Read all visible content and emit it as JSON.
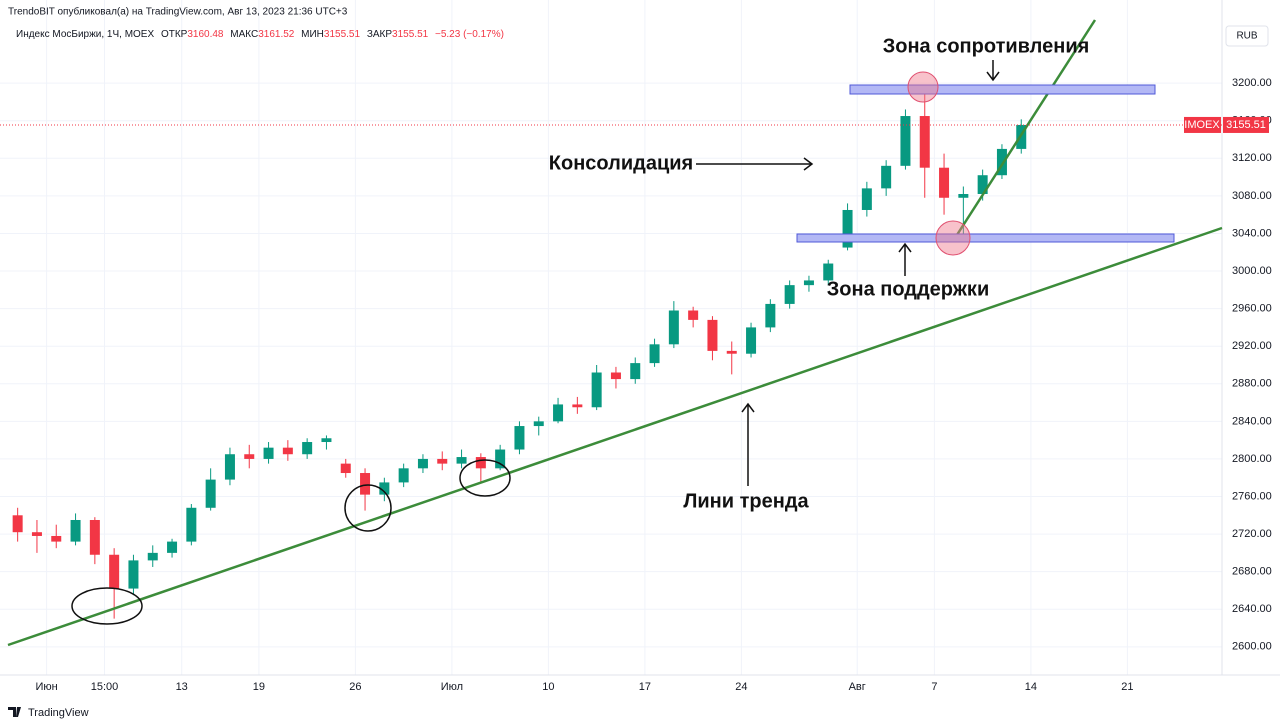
{
  "header": {
    "author_line": "TrendoBIT опубликовал(а) на TradingView.com, Авг 13, 2023 21:36 UTC+3",
    "symbol_line": "Индекс МосБиржи, 1Ч, MOEX",
    "open_label": "ОТКР",
    "open": 3160.48,
    "high_label": "МАКС",
    "high": 3161.52,
    "low_label": "МИН",
    "low": 3155.51,
    "close_label": "ЗАКР",
    "close": 3155.51,
    "change": "−5.23 (−0.17%)",
    "currency": "RUB",
    "footer": "TradingView"
  },
  "annotations": {
    "resistance": "Зона сопротивления",
    "consolidation": "Консолидация",
    "support": "Зона поддержки",
    "trend": "Лини тренда"
  },
  "chart_data": {
    "type": "candlestick",
    "up_color": "#089981",
    "down_color": "#f23645",
    "symbol": "IMOEX",
    "last_price": 3155.51,
    "categories": [
      null,
      null,
      "Июн",
      null,
      null,
      "15:00",
      null,
      null,
      null,
      "13",
      null,
      null,
      null,
      "19",
      null,
      null,
      null,
      null,
      "26",
      null,
      null,
      null,
      null,
      "Июл",
      null,
      null,
      null,
      null,
      "10",
      null,
      null,
      null,
      null,
      "17",
      null,
      null,
      null,
      null,
      "24",
      null,
      null,
      null,
      null,
      null,
      "Авг",
      null,
      null,
      null,
      "7",
      null,
      null,
      null,
      null,
      "14",
      null,
      null,
      null,
      null,
      "21",
      null,
      null,
      null,
      null
    ],
    "open": [
      2740,
      2722,
      2718,
      2712,
      2735,
      2698,
      2662,
      2692,
      2700,
      2712,
      2748,
      2778,
      2805,
      2800,
      2812,
      2805,
      2818,
      2795,
      2785,
      2762,
      2775,
      2790,
      2800,
      2795,
      2802,
      2790,
      2810,
      2835,
      2840,
      2858,
      2855,
      2892,
      2885,
      2902,
      2922,
      2958,
      2948,
      2915,
      2912,
      2940,
      2965,
      2985,
      2990,
      3025,
      3065,
      3088,
      3112,
      3165,
      3110,
      3078,
      3082,
      3102,
      3130,
      null,
      null,
      null,
      null,
      null,
      null,
      null,
      null,
      null,
      null
    ],
    "high": [
      2748,
      2735,
      2730,
      2742,
      2738,
      2705,
      2698,
      2708,
      2715,
      2752,
      2790,
      2812,
      2815,
      2818,
      2820,
      2822,
      2825,
      2800,
      2790,
      2780,
      2795,
      2805,
      2808,
      2810,
      2806,
      2815,
      2840,
      2845,
      2865,
      2866,
      2900,
      2898,
      2908,
      2928,
      2968,
      2962,
      2952,
      2925,
      2945,
      2970,
      2990,
      2995,
      3012,
      3072,
      3095,
      3118,
      3172,
      3197,
      3125,
      3090,
      3108,
      3135,
      3161.52,
      null,
      null,
      null,
      null,
      null,
      null,
      null,
      null,
      null,
      null
    ],
    "low": [
      2712,
      2700,
      2705,
      2708,
      2688,
      2630,
      2655,
      2685,
      2695,
      2708,
      2745,
      2772,
      2790,
      2795,
      2798,
      2800,
      2810,
      2780,
      2745,
      2755,
      2770,
      2785,
      2788,
      2790,
      2775,
      2788,
      2805,
      2825,
      2838,
      2848,
      2852,
      2875,
      2880,
      2898,
      2918,
      2940,
      2905,
      2890,
      2908,
      2935,
      2960,
      2978,
      2985,
      3022,
      3058,
      3080,
      3108,
      3078,
      3060,
      3037,
      3075,
      3098,
      3125,
      null,
      null,
      null,
      null,
      null,
      null,
      null,
      null,
      null,
      null
    ],
    "close": [
      2722,
      2718,
      2712,
      2735,
      2698,
      2662,
      2692,
      2700,
      2712,
      2748,
      2778,
      2805,
      2800,
      2812,
      2805,
      2818,
      2822,
      2785,
      2762,
      2775,
      2790,
      2800,
      2795,
      2802,
      2790,
      2810,
      2835,
      2840,
      2858,
      2855,
      2892,
      2885,
      2902,
      2922,
      2958,
      2948,
      2915,
      2912,
      2940,
      2965,
      2985,
      2990,
      3008,
      3065,
      3088,
      3112,
      3165,
      3110,
      3078,
      3082,
      3102,
      3130,
      3155.51,
      null,
      null,
      null,
      null,
      null,
      null,
      null,
      null,
      null,
      null
    ],
    "ylim": [
      2570,
      3280
    ],
    "yticks": [
      {
        "value": 2600,
        "label": "2600.00"
      },
      {
        "value": 2640,
        "label": "2640.00"
      },
      {
        "value": 2680,
        "label": "2680.00"
      },
      {
        "value": 2720,
        "label": "2720.00"
      },
      {
        "value": 2760,
        "label": "2760.00"
      },
      {
        "value": 2800,
        "label": "2800.00"
      },
      {
        "value": 2840,
        "label": "2840.00"
      },
      {
        "value": 2880,
        "label": "2880.00"
      },
      {
        "value": 2920,
        "label": "2920.00"
      },
      {
        "value": 2960,
        "label": "2960.00"
      },
      {
        "value": 3000,
        "label": "3000.00"
      },
      {
        "value": 3040,
        "label": "3040.00"
      },
      {
        "value": 3080,
        "label": "3080.00"
      },
      {
        "value": 3120,
        "label": "3120.00"
      },
      {
        "value": 3160,
        "label": "3160.00"
      },
      {
        "value": 3200,
        "label": "3200.00"
      }
    ],
    "grid": true
  }
}
